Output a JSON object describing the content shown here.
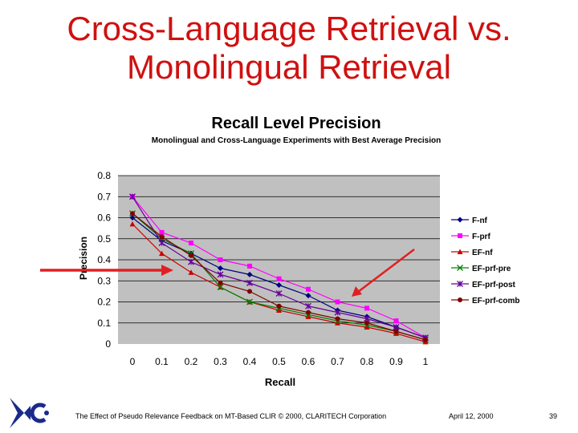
{
  "slide": {
    "title_line1": "Cross-Language Retrieval vs.",
    "title_line2": "Monolingual Retrieval",
    "footer_text": "The Effect of Pseudo Relevance Feedback on MT-Based CLIR © 2000, CLARITECH Corporation",
    "footer_date": "April 12, 2000",
    "page_number": "39"
  },
  "chart_data": {
    "type": "line",
    "title": "Recall Level Precision",
    "subtitle": "Monolingual and Cross-Language Experiments with Best Average Precision",
    "xlabel": "Recall",
    "ylabel": "Precision",
    "x": [
      0,
      0.1,
      0.2,
      0.3,
      0.4,
      0.5,
      0.6,
      0.7,
      0.8,
      0.9,
      1
    ],
    "x_tick_labels": [
      "0",
      "0.1",
      "0.2",
      "0.3",
      "0.4",
      "0.5",
      "0.6",
      "0.7",
      "0.8",
      "0.9",
      "1"
    ],
    "y_tick_labels": [
      "0",
      "0.1",
      "0.2",
      "0.3",
      "0.4",
      "0.5",
      "0.6",
      "0.7",
      "0.8"
    ],
    "ylim": [
      0,
      0.8
    ],
    "grid": "horizontal",
    "legend_position": "right",
    "series": [
      {
        "name": "F-nf",
        "color": "#000080",
        "marker": "diamond",
        "values": [
          0.6,
          0.49,
          0.43,
          0.36,
          0.33,
          0.28,
          0.23,
          0.16,
          0.13,
          0.08,
          0.03
        ]
      },
      {
        "name": "F-prf",
        "color": "#ff00ff",
        "marker": "square",
        "values": [
          0.7,
          0.53,
          0.48,
          0.4,
          0.37,
          0.31,
          0.26,
          0.2,
          0.17,
          0.11,
          0.03
        ]
      },
      {
        "name": "EF-nf",
        "color": "#cc0000",
        "marker": "triangle",
        "values": [
          0.57,
          0.43,
          0.34,
          0.27,
          0.2,
          0.16,
          0.13,
          0.1,
          0.08,
          0.05,
          0.01
        ]
      },
      {
        "name": "EF-prf-pre",
        "color": "#008000",
        "marker": "x",
        "values": [
          0.62,
          0.5,
          0.43,
          0.27,
          0.2,
          0.17,
          0.14,
          0.11,
          0.09,
          0.06,
          0.02
        ]
      },
      {
        "name": "EF-prf-post",
        "color": "#660099",
        "marker": "star",
        "values": [
          0.7,
          0.48,
          0.39,
          0.33,
          0.29,
          0.24,
          0.18,
          0.15,
          0.12,
          0.08,
          0.03
        ]
      },
      {
        "name": "EF-prf-comb",
        "color": "#800000",
        "marker": "circle",
        "values": [
          0.62,
          0.51,
          0.42,
          0.29,
          0.25,
          0.18,
          0.15,
          0.12,
          0.1,
          0.06,
          0.02
        ]
      }
    ]
  },
  "annotations": {
    "arrow_color": "#e02020"
  }
}
